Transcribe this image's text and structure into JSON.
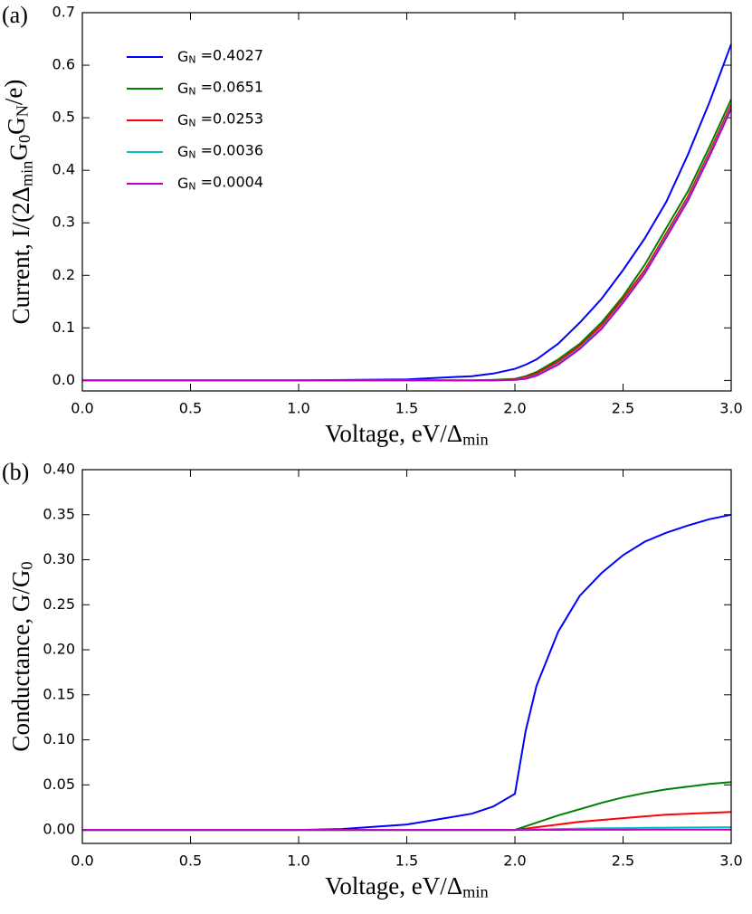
{
  "chart_data": [
    {
      "type": "line",
      "panel": "(a)",
      "xlabel": "Voltage, eV/Δ_{min}",
      "ylabel": "Current, I/(2Δ_{min}G_0G_N/e)",
      "x": [
        0,
        0.5,
        1.0,
        1.5,
        1.8,
        1.9,
        2.0,
        2.05,
        2.1,
        2.2,
        2.3,
        2.4,
        2.5,
        2.6,
        2.7,
        2.8,
        2.9,
        3.0
      ],
      "series": [
        {
          "name": "G_N =0.4027",
          "color": "#0000ff",
          "values": [
            0,
            0,
            0,
            0.002,
            0.008,
            0.013,
            0.022,
            0.03,
            0.04,
            0.07,
            0.11,
            0.155,
            0.21,
            0.27,
            0.34,
            0.43,
            0.53,
            0.64
          ]
        },
        {
          "name": "G_N =0.0651",
          "color": "#008000",
          "values": [
            0,
            0,
            0,
            0,
            0,
            0.001,
            0.003,
            0.008,
            0.016,
            0.04,
            0.07,
            0.11,
            0.16,
            0.22,
            0.29,
            0.36,
            0.445,
            0.535
          ]
        },
        {
          "name": "G_N =0.0253",
          "color": "#ff0000",
          "values": [
            0,
            0,
            0,
            0,
            0,
            0,
            0.002,
            0.006,
            0.013,
            0.036,
            0.066,
            0.105,
            0.155,
            0.21,
            0.28,
            0.35,
            0.435,
            0.525
          ]
        },
        {
          "name": "G_N =0.0036",
          "color": "#00bfbf",
          "values": [
            0,
            0,
            0,
            0,
            0,
            0,
            0.001,
            0.004,
            0.01,
            0.032,
            0.062,
            0.1,
            0.15,
            0.205,
            0.275,
            0.345,
            0.43,
            0.52
          ]
        },
        {
          "name": "G_N =0.0004",
          "color": "#bf00bf",
          "values": [
            0,
            0,
            0,
            0,
            0,
            0,
            0.001,
            0.003,
            0.009,
            0.03,
            0.06,
            0.098,
            0.148,
            0.203,
            0.272,
            0.342,
            0.427,
            0.517
          ]
        }
      ],
      "xlim": [
        0,
        3.0
      ],
      "xticks": [
        {
          "value": 0,
          "label": "0.0"
        },
        0.5,
        {
          "value": 1,
          "label": "1.0"
        },
        1.5,
        {
          "value": 2,
          "label": "2.0"
        },
        2.5,
        {
          "value": 3,
          "label": "3.0"
        }
      ],
      "ylim": [
        -0.02,
        0.7
      ],
      "yticks": [
        {
          "value": 0,
          "label": "0.0"
        },
        0.1,
        0.2,
        0.3,
        0.4,
        0.5,
        0.6,
        0.7
      ],
      "legend": "upper left"
    },
    {
      "type": "line",
      "panel": "(b)",
      "xlabel": "Voltage, eV/Δ_{min}",
      "ylabel": "Conductance, G/G_0",
      "x": [
        0,
        0.5,
        1.0,
        1.2,
        1.5,
        1.8,
        1.9,
        2.0,
        2.05,
        2.1,
        2.2,
        2.3,
        2.4,
        2.5,
        2.6,
        2.7,
        2.8,
        2.9,
        3.0
      ],
      "series": [
        {
          "color": "#0000ff",
          "values": [
            0,
            0,
            0,
            0.001,
            0.006,
            0.018,
            0.026,
            0.04,
            0.11,
            0.16,
            0.22,
            0.26,
            0.285,
            0.305,
            0.32,
            0.33,
            0.338,
            0.345,
            0.35
          ]
        },
        {
          "color": "#008000",
          "values": [
            0,
            0,
            0,
            0,
            0,
            0,
            0,
            0,
            0.004,
            0.008,
            0.016,
            0.023,
            0.03,
            0.036,
            0.041,
            0.045,
            0.048,
            0.051,
            0.053
          ]
        },
        {
          "color": "#ff0000",
          "values": [
            0,
            0,
            0,
            0,
            0,
            0,
            0,
            0,
            0.0015,
            0.003,
            0.006,
            0.009,
            0.011,
            0.013,
            0.015,
            0.017,
            0.018,
            0.019,
            0.02
          ]
        },
        {
          "color": "#00bfbf",
          "values": [
            0,
            0,
            0,
            0,
            0,
            0,
            0,
            0,
            0.0002,
            0.0005,
            0.001,
            0.0015,
            0.0018,
            0.002,
            0.0023,
            0.0025,
            0.0027,
            0.0029,
            0.003
          ]
        },
        {
          "color": "#bf00bf",
          "values": [
            0,
            0,
            0,
            0,
            0,
            0,
            0,
            0,
            0,
            0.0001,
            0.0001,
            0.0002,
            0.0002,
            0.0002,
            0.0003,
            0.0003,
            0.0003,
            0.0003,
            0.0003
          ]
        }
      ],
      "xlim": [
        0,
        3.0
      ],
      "xticks": [
        {
          "value": 0,
          "label": "0.0"
        },
        0.5,
        {
          "value": 1,
          "label": "1.0"
        },
        1.5,
        {
          "value": 2,
          "label": "2.0"
        },
        2.5,
        {
          "value": 3,
          "label": "3.0"
        }
      ],
      "ylim": [
        -0.015,
        0.4
      ],
      "yticks": [
        {
          "value": 0,
          "label": "0.00"
        },
        0.05,
        {
          "value": 0.1,
          "label": "0.10"
        },
        0.15,
        {
          "value": 0.2,
          "label": "0.20"
        },
        0.25,
        {
          "value": 0.3,
          "label": "0.30"
        },
        0.35,
        {
          "value": 0.4,
          "label": "0.40"
        }
      ]
    }
  ]
}
